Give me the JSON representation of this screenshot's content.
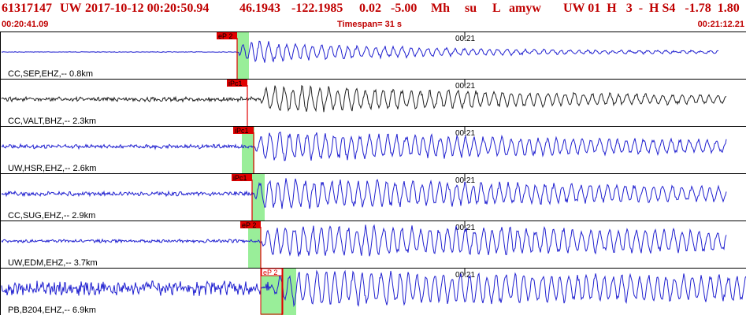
{
  "header": {
    "event_id": "61317147",
    "network": "UW",
    "datetime": "2017-10-12 00:20:50.94",
    "latitude": "46.1943",
    "longitude": "-122.1985",
    "magnitude": "0.02",
    "depth": "-5.00",
    "mag_type": "Mh",
    "flags": "su",
    "etype": "L",
    "analyst": "amyw",
    "rest": "UW 01  H   3  -  H S4   -1.78  1.80"
  },
  "subheader": {
    "start_time": "00:20:41.09",
    "timespan": "Timespan=  31 s",
    "end_time": "00:21:12.21"
  },
  "traces": [
    {
      "label": "CC,SEP,EHZ,-- 0.8km",
      "pick": "eP 2",
      "minute_tick": "00:21",
      "color": "#2020d0"
    },
    {
      "label": "CC,VALT,BHZ,-- 2.3km",
      "pick": "iPc1",
      "minute_tick": "00:21",
      "color": "#202020"
    },
    {
      "label": "UW,HSR,EHZ,-- 2.6km",
      "pick": "iPc1",
      "minute_tick": "00:21",
      "color": "#2020d0"
    },
    {
      "label": "CC,SUG,EHZ,-- 2.9km",
      "pick": "iPc1",
      "minute_tick": "00:21",
      "color": "#2020d0"
    },
    {
      "label": "UW,EDM,EHZ,-- 3.7km",
      "pick": "eP 2",
      "minute_tick": "00:21",
      "color": "#2020d0"
    },
    {
      "label": "PB,B204,EHZ,-- 6.9km",
      "pick": "eP 2",
      "minute_tick": "00:21",
      "color": "#2020d0"
    }
  ],
  "colors": {
    "header_text": "#c00000",
    "pick_fill": "#e00000",
    "window_green": "#99ee99",
    "trace_blue": "#2020d0"
  }
}
